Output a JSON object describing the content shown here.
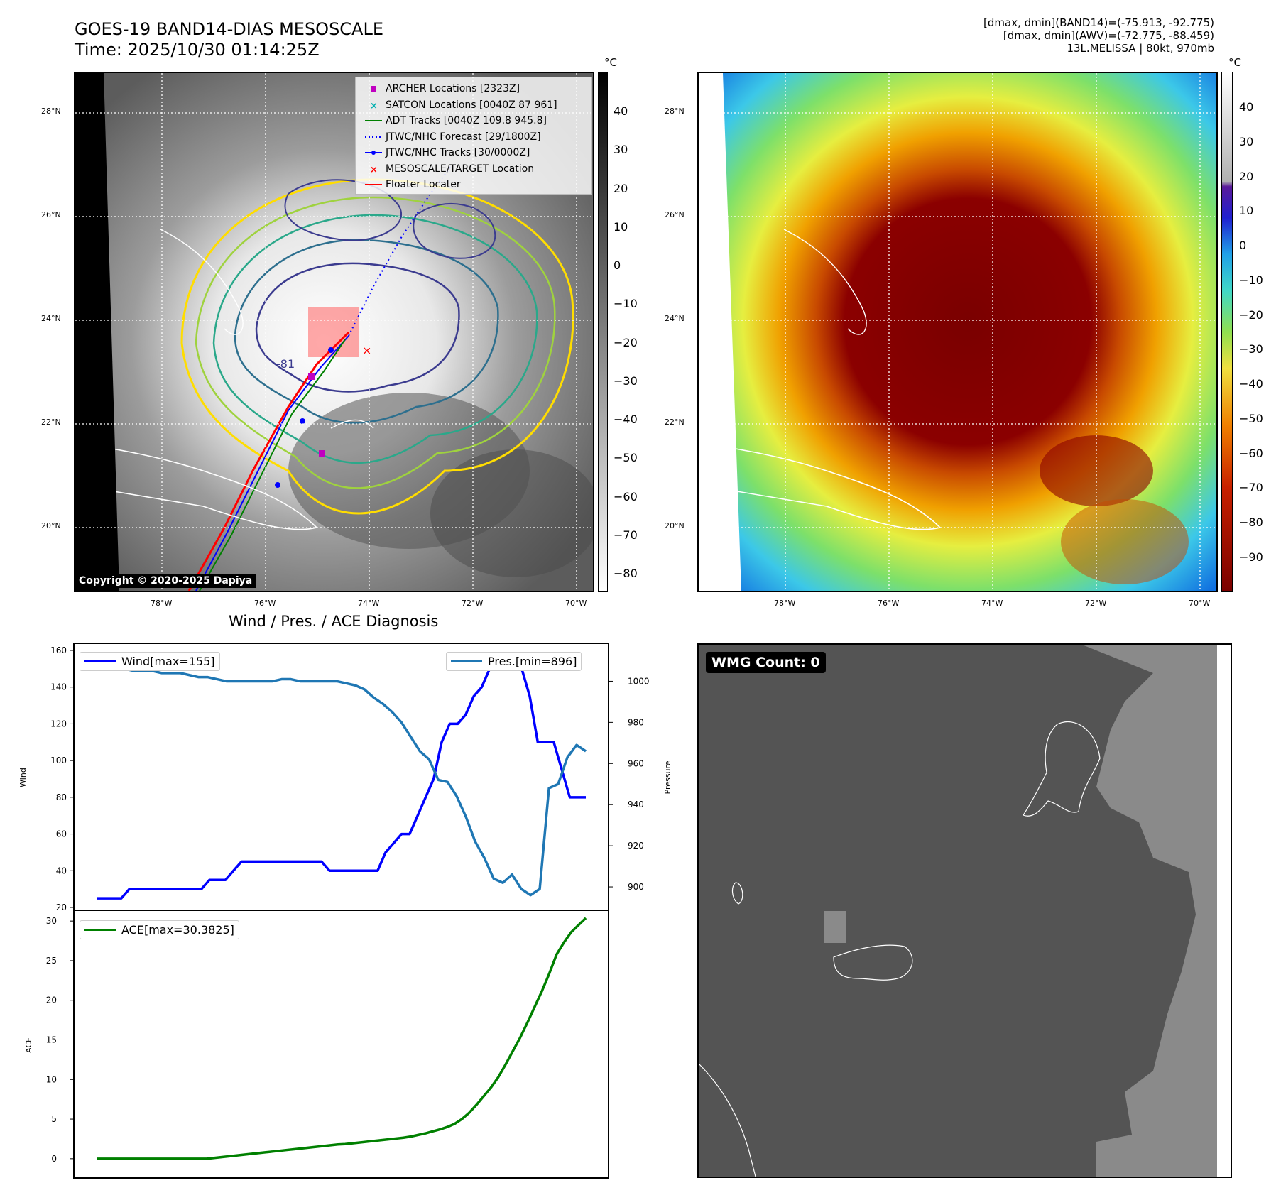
{
  "header": {
    "title_line1": "GOES-19 BAND14-DIAS MESOSCALE",
    "title_line2": "Time: 2025/10/30 01:14:25Z",
    "right_line1": "[dmax, dmin](BAND14)=(-75.913, -92.775)",
    "right_line2": "[dmax, dmin](AWV)=(-72.775, -88.459)",
    "right_line3": "13L.MELISSA | 80kt, 970mb"
  },
  "maps": {
    "lat_labels": [
      "28°N",
      "26°N",
      "24°N",
      "22°N",
      "20°N"
    ],
    "lon_labels": [
      "78°W",
      "76°W",
      "74°W",
      "72°W",
      "70°W"
    ],
    "unit": "°C",
    "copyright": "Copyright © 2020-2025 Dapiya",
    "contour_label": "-81",
    "left_colorbar_ticks": [
      "40",
      "30",
      "20",
      "10",
      "0",
      "−10",
      "−20",
      "−30",
      "−40",
      "−50",
      "−60",
      "−70",
      "−80"
    ],
    "right_colorbar_ticks": [
      "40",
      "30",
      "20",
      "10",
      "0",
      "−10",
      "−20",
      "−30",
      "−40",
      "−50",
      "−60",
      "−70",
      "−80",
      "−90"
    ]
  },
  "legend": {
    "items": [
      {
        "label": "ARCHER Locations [2323Z]",
        "color": "#c000c0",
        "marker": "square"
      },
      {
        "label": "SATCON Locations [0040Z 87 961]",
        "color": "#00b0b0",
        "marker": "x"
      },
      {
        "label": "ADT Tracks [0040Z 109.8 945.8]",
        "color": "#008000",
        "marker": "line"
      },
      {
        "label": "JTWC/NHC Forecast [29/1800Z]",
        "color": "#0000ff",
        "marker": "dotted"
      },
      {
        "label": "JTWC/NHC Tracks [30/0000Z]",
        "color": "#0000ff",
        "marker": "line-dot"
      },
      {
        "label": "MESOSCALE/TARGET Location",
        "color": "#ff0000",
        "marker": "x"
      },
      {
        "label": "Floater Locater",
        "color": "#ff0000",
        "marker": "line"
      }
    ]
  },
  "diagnosis": {
    "title": "Wind / Pres. / ACE Diagnosis",
    "wind_ylabel": "Wind",
    "pres_ylabel": "Pressure",
    "ace_ylabel": "ACE",
    "wind_legend": "Wind[max=155]",
    "pres_legend": "Pres.[min=896]",
    "ace_legend": "ACE[max=30.3825]"
  },
  "wmg": {
    "badge": "WMG Count: 0"
  },
  "chart_data": {
    "type": "line",
    "x_index": [
      0,
      1,
      2,
      3,
      4,
      5,
      6,
      7,
      8,
      9,
      10,
      11,
      12,
      13,
      14,
      15,
      16,
      17,
      18,
      19,
      20,
      21,
      22,
      23,
      24,
      25,
      26,
      27,
      28,
      29,
      30,
      31,
      32,
      33,
      34,
      35,
      36,
      37,
      38,
      39,
      40,
      41,
      42,
      43,
      44,
      45,
      46,
      47,
      48,
      49,
      50,
      51,
      52,
      53,
      54,
      55,
      56,
      57,
      58,
      59,
      60,
      61,
      62,
      63,
      64,
      65,
      66,
      67
    ],
    "series": [
      {
        "name": "Wind[max=155]",
        "axis": "left",
        "color": "#0000ff",
        "values": [
          25,
          25,
          25,
          25,
          30,
          30,
          30,
          30,
          30,
          30,
          30,
          30,
          30,
          30,
          35,
          35,
          35,
          40,
          45,
          45,
          45,
          45,
          45,
          45,
          45,
          45,
          45,
          45,
          45,
          40,
          40,
          40,
          40,
          40,
          40,
          40,
          50,
          55,
          60,
          60,
          70,
          80,
          90,
          110,
          120,
          120,
          125,
          135,
          140,
          150,
          150,
          150,
          155,
          150,
          135,
          110,
          110,
          110,
          95,
          80,
          80,
          80
        ]
      },
      {
        "name": "Pres.[min=896]",
        "axis": "right",
        "color": "#1f77b4",
        "values": [
          1006,
          1006,
          1006,
          1006,
          1005,
          1005,
          1005,
          1004,
          1004,
          1004,
          1003,
          1002,
          1002,
          1001,
          1000,
          1000,
          1000,
          1000,
          1000,
          1000,
          1001,
          1001,
          1000,
          1000,
          1000,
          1000,
          1000,
          999,
          998,
          996,
          992,
          989,
          985,
          980,
          973,
          966,
          962,
          952,
          951,
          944,
          934,
          922,
          914,
          904,
          902,
          906,
          899,
          896,
          899,
          948,
          950,
          963,
          969,
          966
        ]
      },
      {
        "name": "ACE[max=30.3825]",
        "axis": "ace",
        "color": "#008000",
        "values": [
          0,
          0,
          0,
          0,
          0,
          0,
          0,
          0,
          0,
          0,
          0,
          0,
          0,
          0,
          0,
          0,
          0.1,
          0.2,
          0.3,
          0.4,
          0.5,
          0.6,
          0.7,
          0.8,
          0.9,
          1.0,
          1.1,
          1.2,
          1.3,
          1.4,
          1.5,
          1.6,
          1.7,
          1.8,
          1.85,
          1.95,
          2.05,
          2.15,
          2.25,
          2.35,
          2.45,
          2.55,
          2.65,
          2.8,
          3.0,
          3.2,
          3.45,
          3.7,
          4.0,
          4.4,
          5.0,
          5.8,
          6.8,
          7.9,
          9.0,
          10.3,
          11.9,
          13.6,
          15.3,
          17.2,
          19.2,
          21.2,
          23.4,
          25.8,
          27.3,
          28.6,
          29.5,
          30.38
        ]
      }
    ],
    "wind_ylim": [
      20,
      160
    ],
    "wind_ticks": [
      "160",
      "140",
      "120",
      "100",
      "80",
      "60",
      "40",
      "20"
    ],
    "pres_ylim": [
      890,
      1015
    ],
    "pres_ticks": [
      "1000",
      "980",
      "960",
      "940",
      "920",
      "900"
    ],
    "ace_ylim": [
      -1,
      31
    ],
    "ace_ticks": [
      "30",
      "25",
      "20",
      "15",
      "10",
      "5",
      "0"
    ],
    "grid": false,
    "legend_placement": "upper-left / upper-right"
  }
}
